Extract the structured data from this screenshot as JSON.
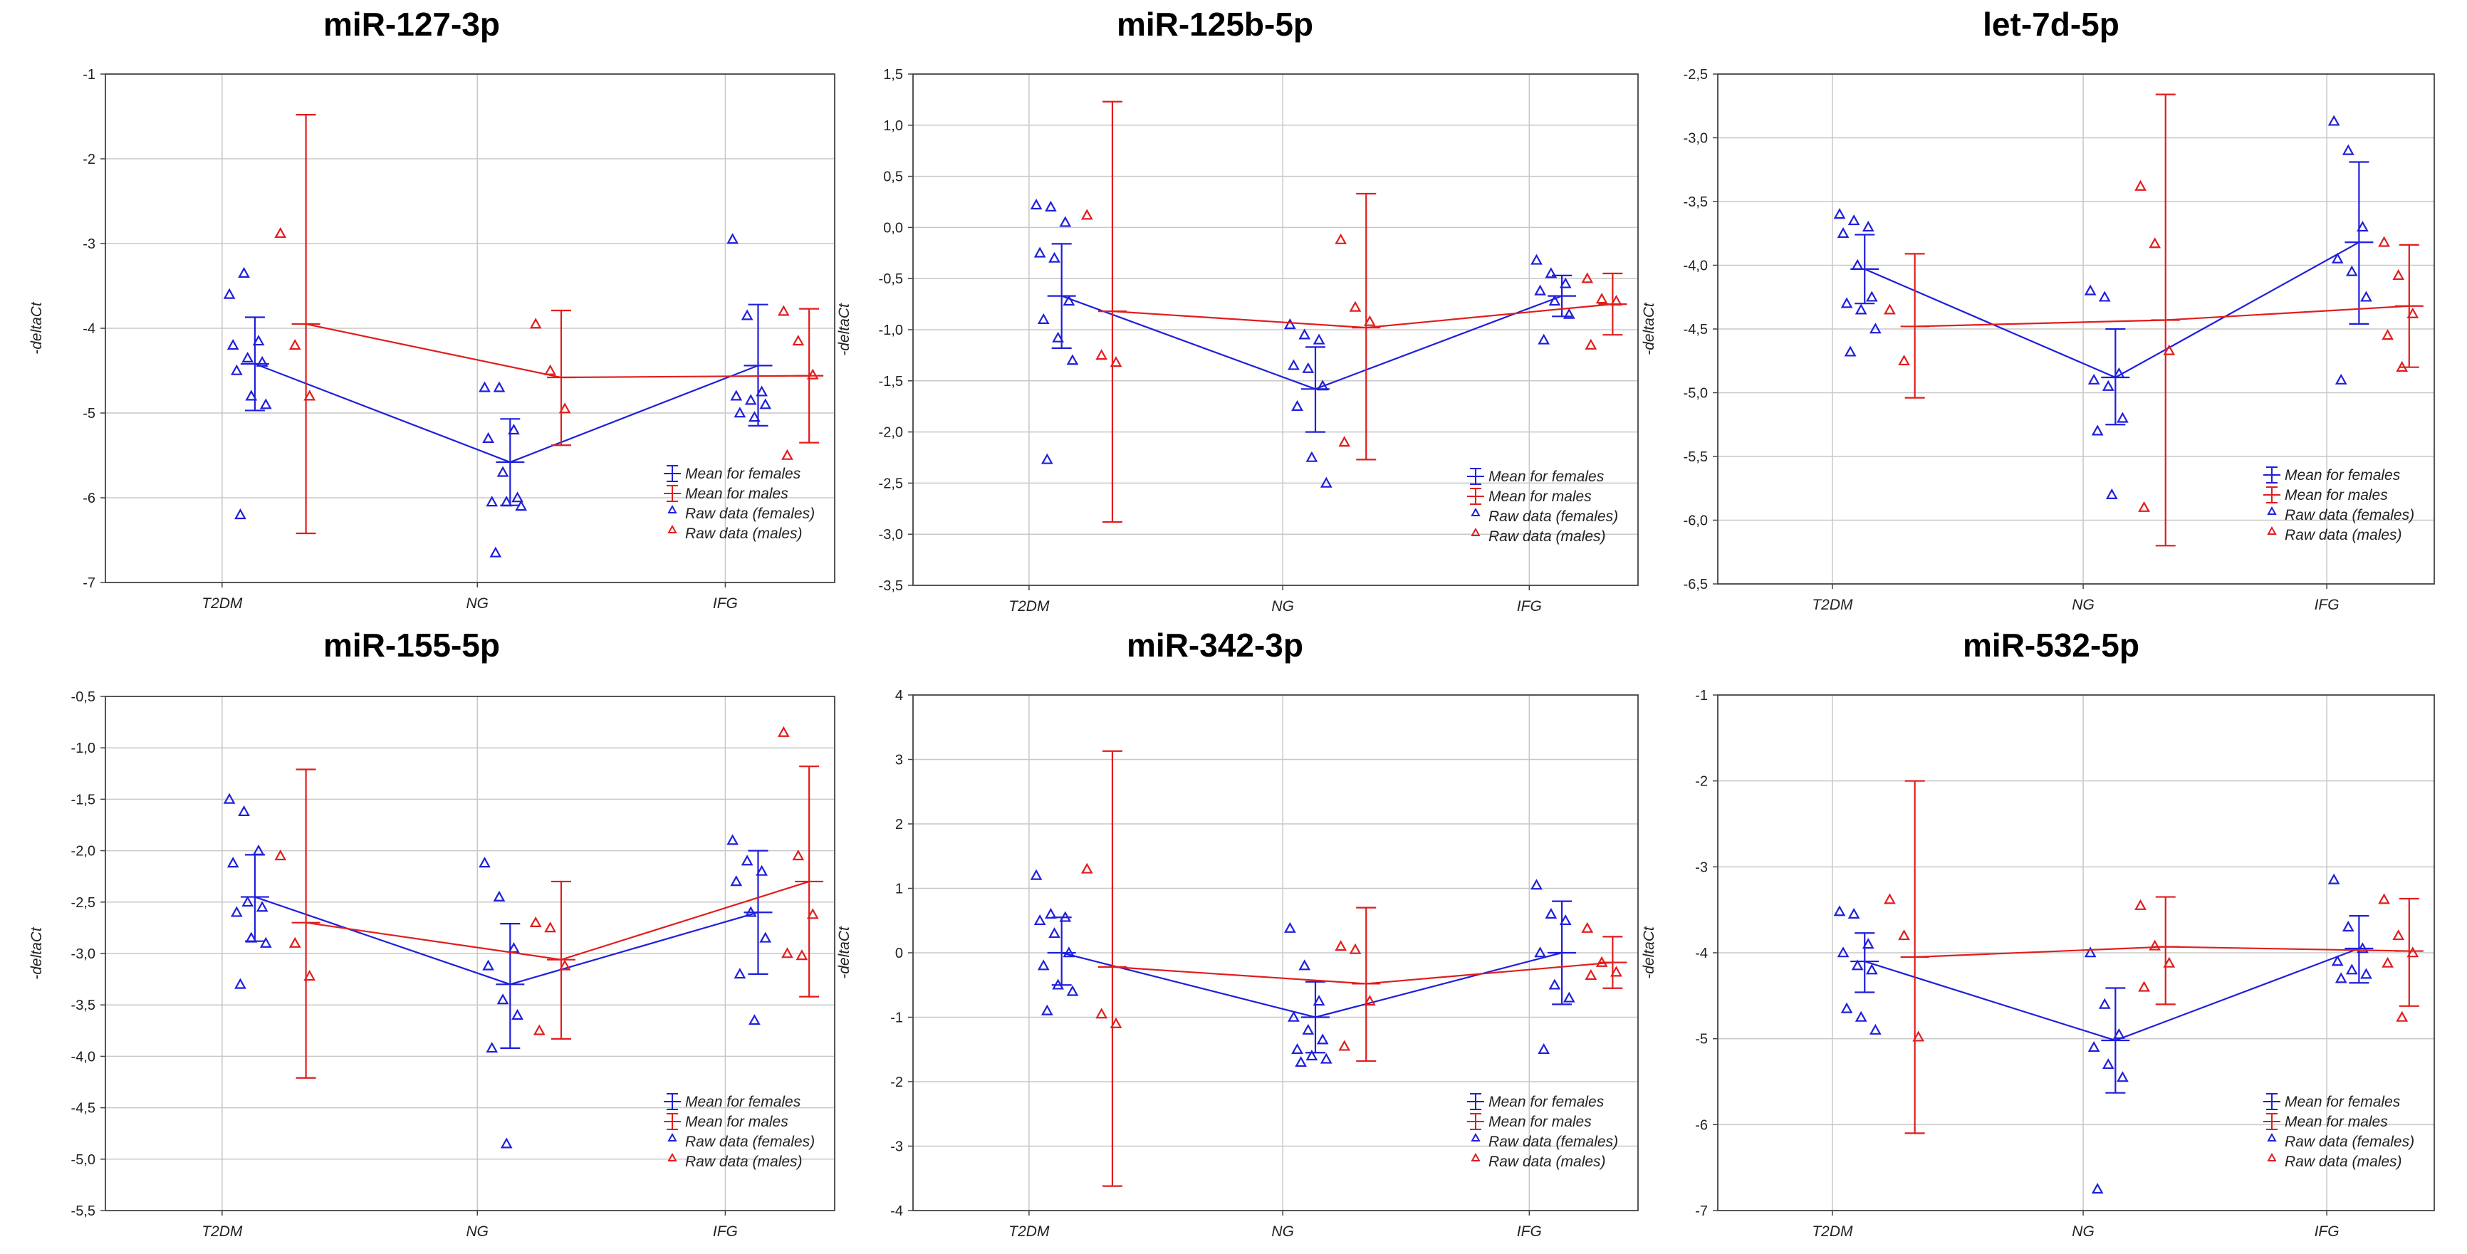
{
  "colors": {
    "females": "#1f1fdc",
    "males": "#e11d1d",
    "grid": "#c8c8c8",
    "axis": "#444444"
  },
  "legend_labels": [
    "Mean for females",
    "Mean for males",
    "Raw data (females)",
    "Raw data (males)"
  ],
  "chart_data": [
    {
      "type": "scatter",
      "title": "miR-127-3p",
      "ylabel": "-deltaCt",
      "categories": [
        "T2DM",
        "NG",
        "IFG"
      ],
      "ylim": [
        -7,
        -1
      ],
      "yticks": [
        -7,
        -6,
        -5,
        -4,
        -3,
        -2,
        -1
      ],
      "ytick_labels": [
        "-7",
        "-6",
        "-5",
        "-4",
        "-3",
        "-2",
        "-1"
      ],
      "series": [
        {
          "name": "females",
          "mean": [
            -4.42,
            -5.58,
            -4.44
          ],
          "err": [
            [
              -4.97,
              -3.87
            ],
            [
              -6.09,
              -5.07
            ],
            [
              -5.15,
              -3.72
            ]
          ],
          "raw": [
            [
              -3.6,
              -3.35,
              -4.15,
              -4.2,
              -4.35,
              -4.4,
              -4.5,
              -4.8,
              -4.9,
              -6.2
            ],
            [
              -4.7,
              -4.7,
              -5.2,
              -5.3,
              -5.7,
              -6.0,
              -6.05,
              -6.05,
              -6.1,
              -6.65
            ],
            [
              -2.95,
              -3.85,
              -4.75,
              -4.8,
              -4.85,
              -4.9,
              -5.0,
              -5.05
            ]
          ]
        },
        {
          "name": "males",
          "mean": [
            -3.95,
            -4.58,
            -4.56
          ],
          "err": [
            [
              -6.42,
              -1.48
            ],
            [
              -5.38,
              -3.79
            ],
            [
              -5.35,
              -3.77
            ]
          ],
          "raw": [
            [
              -2.88,
              -4.2,
              -4.8
            ],
            [
              -3.95,
              -4.5,
              -4.95
            ],
            [
              -3.8,
              -4.15,
              -4.55,
              -5.5
            ]
          ]
        }
      ]
    },
    {
      "type": "scatter",
      "title": "miR-125b-5p",
      "ylabel": "-deltaCt",
      "categories": [
        "T2DM",
        "NG",
        "IFG"
      ],
      "ylim": [
        -3.5,
        1.5
      ],
      "yticks": [
        -3.5,
        -3.0,
        -2.5,
        -2.0,
        -1.5,
        -1.0,
        -0.5,
        0.0,
        0.5,
        1.0,
        1.5
      ],
      "ytick_labels": [
        "-3,5",
        "-3,0",
        "-2,5",
        "-2,0",
        "-1,5",
        "-1,0",
        "-0,5",
        "0,0",
        "0,5",
        "1,0",
        "1,5"
      ],
      "series": [
        {
          "name": "females",
          "mean": [
            -0.67,
            -1.58,
            -0.67
          ],
          "err": [
            [
              -1.18,
              -0.16
            ],
            [
              -2.0,
              -1.17
            ],
            [
              -0.87,
              -0.47
            ]
          ],
          "raw": [
            [
              0.22,
              0.2,
              0.05,
              -0.25,
              -0.3,
              -0.72,
              -0.9,
              -1.08,
              -1.3,
              -2.27
            ],
            [
              -0.95,
              -1.05,
              -1.1,
              -1.35,
              -1.38,
              -1.55,
              -1.75,
              -2.25,
              -2.5
            ],
            [
              -0.32,
              -0.45,
              -0.55,
              -0.62,
              -0.72,
              -0.85,
              -1.1
            ]
          ]
        },
        {
          "name": "males",
          "mean": [
            -0.82,
            -0.98,
            -0.75
          ],
          "err": [
            [
              -2.88,
              1.23
            ],
            [
              -2.27,
              0.33
            ],
            [
              -1.05,
              -0.45
            ]
          ],
          "raw": [
            [
              0.12,
              -1.25,
              -1.32
            ],
            [
              -0.12,
              -0.78,
              -0.92,
              -2.1
            ],
            [
              -0.5,
              -0.7,
              -0.72,
              -1.15
            ]
          ]
        }
      ]
    },
    {
      "type": "scatter",
      "title": "let-7d-5p",
      "ylabel": "-deltaCt",
      "categories": [
        "T2DM",
        "NG",
        "IFG"
      ],
      "ylim": [
        -6.5,
        -2.5
      ],
      "yticks": [
        -6.5,
        -6.0,
        -5.5,
        -5.0,
        -4.5,
        -4.0,
        -3.5,
        -3.0,
        -2.5
      ],
      "ytick_labels": [
        "-6,5",
        "-6,0",
        "-5,5",
        "-5,0",
        "-4,5",
        "-4,0",
        "-3,5",
        "-3,0",
        "-2,5"
      ],
      "series": [
        {
          "name": "females",
          "mean": [
            -4.03,
            -4.88,
            -3.82
          ],
          "err": [
            [
              -4.3,
              -3.76
            ],
            [
              -5.25,
              -4.5
            ],
            [
              -4.46,
              -3.19
            ]
          ],
          "raw": [
            [
              -3.6,
              -3.65,
              -3.7,
              -3.75,
              -4.0,
              -4.25,
              -4.3,
              -4.35,
              -4.5,
              -4.68
            ],
            [
              -4.2,
              -4.25,
              -4.85,
              -4.9,
              -4.95,
              -5.2,
              -5.3,
              -5.8
            ],
            [
              -2.87,
              -3.1,
              -3.7,
              -3.95,
              -4.05,
              -4.25,
              -4.9
            ]
          ]
        },
        {
          "name": "males",
          "mean": [
            -4.48,
            -4.43,
            -4.32
          ],
          "err": [
            [
              -5.04,
              -3.91
            ],
            [
              -6.2,
              -2.66
            ],
            [
              -4.8,
              -3.84
            ]
          ],
          "raw": [
            [
              -4.35,
              -4.75
            ],
            [
              -3.38,
              -3.83,
              -4.67,
              -5.9
            ],
            [
              -3.82,
              -4.08,
              -4.38,
              -4.55,
              -4.8
            ]
          ]
        }
      ]
    },
    {
      "type": "scatter",
      "title": "miR-155-5p",
      "ylabel": "-deltaCt",
      "categories": [
        "T2DM",
        "NG",
        "IFG"
      ],
      "ylim": [
        -5.5,
        -0.5
      ],
      "yticks": [
        -5.5,
        -5.0,
        -4.5,
        -4.0,
        -3.5,
        -3.0,
        -2.5,
        -2.0,
        -1.5,
        -1.0,
        -0.5
      ],
      "ytick_labels": [
        "-5,5",
        "-5,0",
        "-4,5",
        "-4,0",
        "-3,5",
        "-3,0",
        "-2,5",
        "-2,0",
        "-1,5",
        "-1,0",
        "-0,5"
      ],
      "series": [
        {
          "name": "females",
          "mean": [
            -2.45,
            -3.3,
            -2.6
          ],
          "err": [
            [
              -2.88,
              -2.04
            ],
            [
              -3.92,
              -2.71
            ],
            [
              -3.2,
              -2.0
            ]
          ],
          "raw": [
            [
              -1.5,
              -1.62,
              -2.0,
              -2.12,
              -2.5,
              -2.55,
              -2.6,
              -2.85,
              -2.9,
              -3.3
            ],
            [
              -2.12,
              -2.45,
              -2.95,
              -3.12,
              -3.45,
              -3.6,
              -3.92,
              -4.85
            ],
            [
              -1.9,
              -2.1,
              -2.2,
              -2.3,
              -2.6,
              -2.85,
              -3.2,
              -3.65
            ]
          ]
        },
        {
          "name": "males",
          "mean": [
            -2.7,
            -3.06,
            -2.3
          ],
          "err": [
            [
              -4.21,
              -1.21
            ],
            [
              -3.83,
              -2.3
            ],
            [
              -3.42,
              -1.18
            ]
          ],
          "raw": [
            [
              -2.05,
              -2.9,
              -3.22
            ],
            [
              -2.7,
              -2.75,
              -3.12,
              -3.75
            ],
            [
              -0.85,
              -2.05,
              -2.62,
              -3.0,
              -3.02
            ]
          ]
        }
      ]
    },
    {
      "type": "scatter",
      "title": "miR-342-3p",
      "ylabel": "-deltaCt",
      "categories": [
        "T2DM",
        "NG",
        "IFG"
      ],
      "ylim": [
        -4,
        4
      ],
      "yticks": [
        -4,
        -3,
        -2,
        -1,
        0,
        1,
        2,
        3,
        4
      ],
      "ytick_labels": [
        "-4",
        "-3",
        "-2",
        "-1",
        "0",
        "1",
        "2",
        "3",
        "4"
      ],
      "series": [
        {
          "name": "females",
          "mean": [
            0.0,
            -1.0,
            0.0
          ],
          "err": [
            [
              -0.5,
              0.55
            ],
            [
              -1.55,
              -0.45
            ],
            [
              -0.8,
              0.8
            ]
          ],
          "raw": [
            [
              1.2,
              0.6,
              0.55,
              0.5,
              0.3,
              0.0,
              -0.2,
              -0.5,
              -0.6,
              -0.9
            ],
            [
              0.38,
              -0.2,
              -0.75,
              -1.0,
              -1.2,
              -1.35,
              -1.5,
              -1.6,
              -1.65,
              -1.7
            ],
            [
              1.05,
              0.6,
              0.5,
              0.0,
              -0.5,
              -0.7,
              -1.5
            ]
          ]
        },
        {
          "name": "males",
          "mean": [
            -0.22,
            -0.48,
            -0.15
          ],
          "err": [
            [
              -3.62,
              3.13
            ],
            [
              -1.68,
              0.7
            ],
            [
              -0.55,
              0.25
            ]
          ],
          "raw": [
            [
              1.3,
              -0.95,
              -1.1
            ],
            [
              0.1,
              0.05,
              -0.75,
              -1.45
            ],
            [
              0.38,
              -0.15,
              -0.3,
              -0.35
            ]
          ]
        }
      ]
    },
    {
      "type": "scatter",
      "title": "miR-532-5p",
      "ylabel": "-deltaCt",
      "categories": [
        "T2DM",
        "NG",
        "IFG"
      ],
      "ylim": [
        -7,
        -1
      ],
      "yticks": [
        -7,
        -6,
        -5,
        -4,
        -3,
        -2,
        -1
      ],
      "ytick_labels": [
        "-7",
        "-6",
        "-5",
        "-4",
        "-3",
        "-2",
        "-1"
      ],
      "series": [
        {
          "name": "females",
          "mean": [
            -4.1,
            -5.02,
            -3.95
          ],
          "err": [
            [
              -4.46,
              -3.77
            ],
            [
              -5.63,
              -4.41
            ],
            [
              -4.35,
              -3.57
            ]
          ],
          "raw": [
            [
              -3.52,
              -3.55,
              -3.9,
              -4.0,
              -4.15,
              -4.2,
              -4.65,
              -4.75,
              -4.9
            ],
            [
              -4.0,
              -4.6,
              -4.95,
              -5.1,
              -5.3,
              -5.45,
              -6.75
            ],
            [
              -3.15,
              -3.7,
              -3.95,
              -4.1,
              -4.2,
              -4.25,
              -4.3
            ]
          ]
        },
        {
          "name": "males",
          "mean": [
            -4.05,
            -3.93,
            -3.98
          ],
          "err": [
            [
              -6.1,
              -2.0
            ],
            [
              -4.6,
              -3.35
            ],
            [
              -4.62,
              -3.37
            ]
          ],
          "raw": [
            [
              -3.38,
              -3.8,
              -4.98
            ],
            [
              -3.45,
              -3.92,
              -4.12,
              -4.4
            ],
            [
              -3.38,
              -3.8,
              -4.0,
              -4.12,
              -4.75
            ]
          ]
        }
      ]
    }
  ]
}
